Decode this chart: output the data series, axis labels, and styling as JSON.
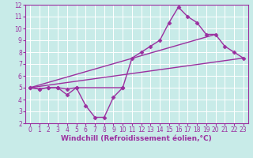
{
  "line1_x": [
    0,
    1,
    2,
    3,
    4,
    5,
    6,
    7,
    8,
    9,
    10
  ],
  "line1_y": [
    5,
    4.9,
    5.0,
    5.0,
    4.4,
    5.0,
    3.5,
    2.5,
    2.5,
    4.2,
    5.0
  ],
  "line2_x": [
    0,
    1,
    2,
    3,
    4,
    5,
    10,
    11,
    12,
    13,
    14,
    15,
    16,
    17,
    18,
    19,
    20,
    21,
    22,
    23
  ],
  "line2_y": [
    5,
    4.9,
    5.0,
    5.0,
    4.9,
    5.0,
    5.0,
    7.5,
    8.0,
    8.5,
    9.0,
    10.5,
    11.8,
    11.0,
    10.5,
    9.5,
    9.5,
    8.5,
    8.0,
    7.5
  ],
  "line3_x": [
    0,
    23
  ],
  "line3_y": [
    5.0,
    7.5
  ],
  "line4_x": [
    0,
    20
  ],
  "line4_y": [
    5.0,
    9.5
  ],
  "xlim": [
    -0.5,
    23.5
  ],
  "ylim": [
    2,
    12
  ],
  "yticks": [
    2,
    3,
    4,
    5,
    6,
    7,
    8,
    9,
    10,
    11,
    12
  ],
  "xticks": [
    0,
    1,
    2,
    3,
    4,
    5,
    6,
    7,
    8,
    9,
    10,
    11,
    12,
    13,
    14,
    15,
    16,
    17,
    18,
    19,
    20,
    21,
    22,
    23
  ],
  "xlabel": "Windchill (Refroidissement éolien,°C)",
  "line_color": "#9B30A0",
  "bg_color": "#C8EBE8",
  "grid_color": "#FFFFFF",
  "marker": "D",
  "marker_size": 2.5,
  "linewidth": 1.0,
  "xlabel_fontsize": 6.5,
  "tick_fontsize": 5.5
}
